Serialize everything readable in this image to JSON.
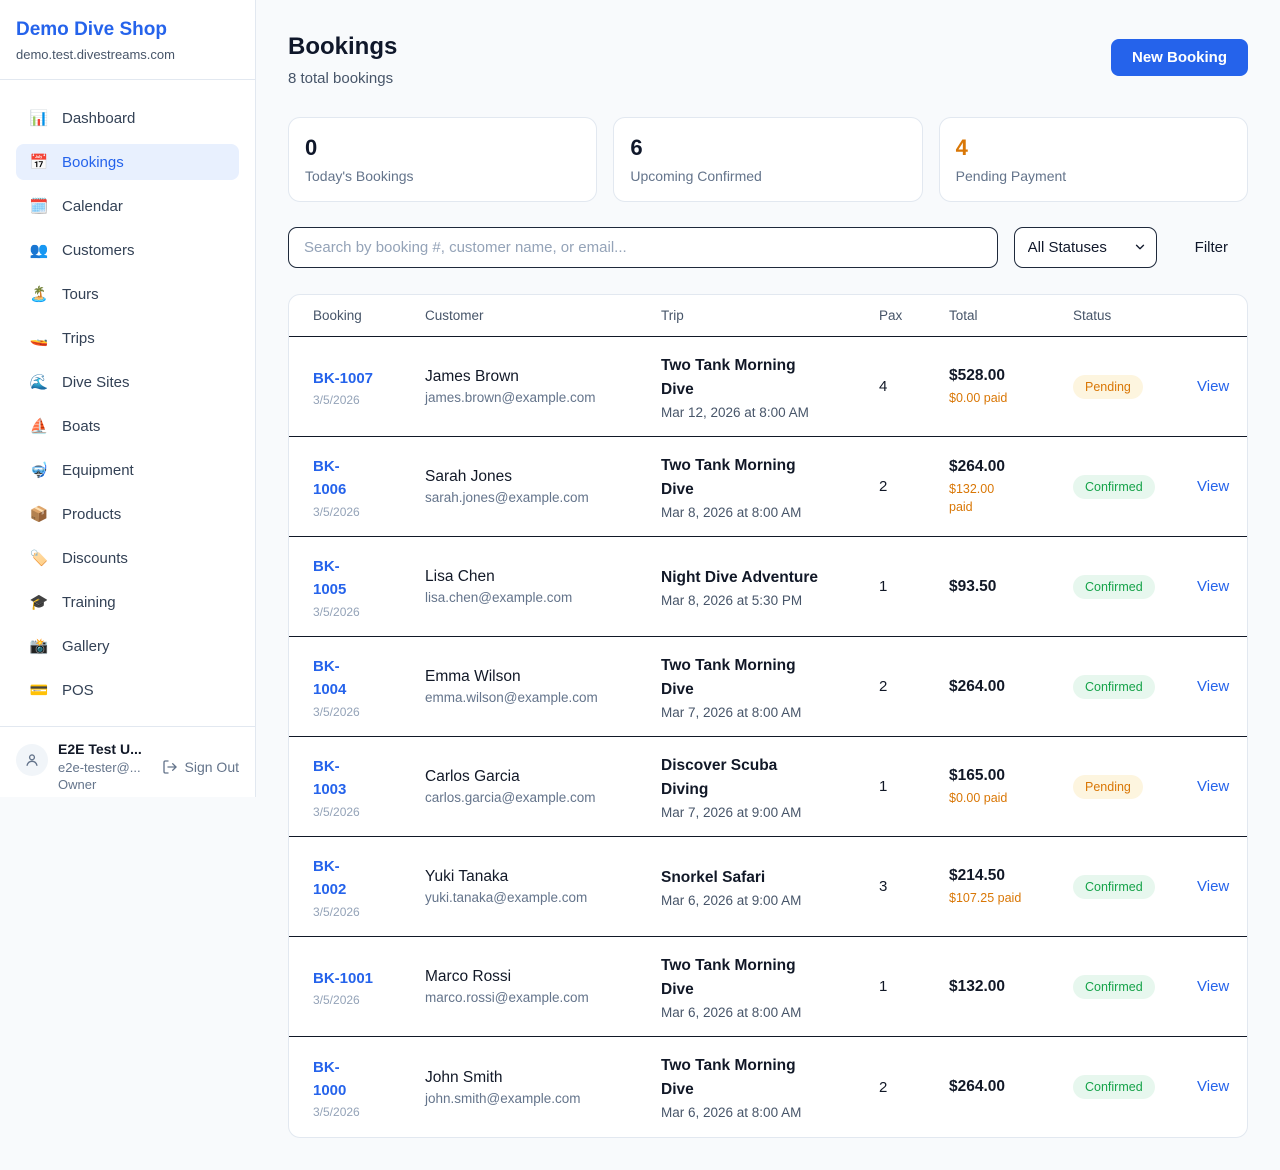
{
  "sidebar": {
    "shop_name": "Demo Dive Shop",
    "domain": "demo.test.divestreams.com",
    "items": [
      {
        "key": "dashboard",
        "icon": "bar-chart-icon",
        "emoji": "📊",
        "label": "Dashboard",
        "active": false
      },
      {
        "key": "bookings",
        "icon": "calendar-icon",
        "emoji": "📅",
        "label": "Bookings",
        "active": true
      },
      {
        "key": "calendar",
        "icon": "spiral-calendar-icon",
        "emoji": "🗓️",
        "label": "Calendar",
        "active": false
      },
      {
        "key": "customers",
        "icon": "users-icon",
        "emoji": "👥",
        "label": "Customers",
        "active": false
      },
      {
        "key": "tours",
        "icon": "island-icon",
        "emoji": "🏝️",
        "label": "Tours",
        "active": false
      },
      {
        "key": "trips",
        "icon": "speedboat-icon",
        "emoji": "🚤",
        "label": "Trips",
        "active": false
      },
      {
        "key": "dive-sites",
        "icon": "wave-icon",
        "emoji": "🌊",
        "label": "Dive Sites",
        "active": false
      },
      {
        "key": "boats",
        "icon": "sailboat-icon",
        "emoji": "⛵",
        "label": "Boats",
        "active": false
      },
      {
        "key": "equipment",
        "icon": "diving-mask-icon",
        "emoji": "🤿",
        "label": "Equipment",
        "active": false
      },
      {
        "key": "products",
        "icon": "package-icon",
        "emoji": "📦",
        "label": "Products",
        "active": false
      },
      {
        "key": "discounts",
        "icon": "label-tag-icon",
        "emoji": "🏷️",
        "label": "Discounts",
        "active": false
      },
      {
        "key": "training",
        "icon": "graduation-cap-icon",
        "emoji": "🎓",
        "label": "Training",
        "active": false
      },
      {
        "key": "gallery",
        "icon": "camera-icon",
        "emoji": "📸",
        "label": "Gallery",
        "active": false
      },
      {
        "key": "pos",
        "icon": "credit-card-icon",
        "emoji": "💳",
        "label": "POS",
        "active": false
      }
    ],
    "user": {
      "name": "E2E Test U...",
      "email": "e2e-tester@...",
      "role": "Owner",
      "sign_out_label": "Sign Out"
    }
  },
  "header": {
    "title": "Bookings",
    "subtitle": "8 total bookings",
    "new_booking_label": "New Booking"
  },
  "stats": [
    {
      "key": "todays-bookings",
      "value": "0",
      "label": "Today's Bookings",
      "accent": "dark"
    },
    {
      "key": "upcoming-confirmed",
      "value": "6",
      "label": "Upcoming Confirmed",
      "accent": "dark"
    },
    {
      "key": "pending-payment",
      "value": "4",
      "label": "Pending Payment",
      "accent": "orange"
    }
  ],
  "controls": {
    "search_placeholder": "Search by booking #, customer name, or email...",
    "status_filter_value": "All Statuses",
    "filter_label": "Filter"
  },
  "table": {
    "columns": [
      "Booking",
      "Customer",
      "Trip",
      "Pax",
      "Total",
      "Status"
    ],
    "rows": [
      {
        "id": "BK-1007",
        "date": "3/5/2026",
        "customer_name": "James Brown",
        "customer_email": "james.brown@example.com",
        "trip_name": "Two Tank Morning\nDive",
        "trip_datetime": "Mar 12, 2026 at 8:00 AM",
        "pax": "4",
        "total": "$528.00",
        "paid": "$0.00 paid",
        "status": "Pending",
        "action": "View"
      },
      {
        "id": "BK-\n1006",
        "date": "3/5/2026",
        "customer_name": "Sarah Jones",
        "customer_email": "sarah.jones@example.com",
        "trip_name": "Two Tank Morning\nDive",
        "trip_datetime": "Mar 8, 2026 at 8:00 AM",
        "pax": "2",
        "total": "$264.00",
        "paid": "$132.00\npaid",
        "status": "Confirmed",
        "action": "View"
      },
      {
        "id": "BK-\n1005",
        "date": "3/5/2026",
        "customer_name": "Lisa Chen",
        "customer_email": "lisa.chen@example.com",
        "trip_name": "Night Dive Adventure",
        "trip_datetime": "Mar 8, 2026 at 5:30 PM",
        "pax": "1",
        "total": "$93.50",
        "paid": "",
        "status": "Confirmed",
        "action": "View"
      },
      {
        "id": "BK-\n1004",
        "date": "3/5/2026",
        "customer_name": "Emma Wilson",
        "customer_email": "emma.wilson@example.com",
        "trip_name": "Two Tank Morning\nDive",
        "trip_datetime": "Mar 7, 2026 at 8:00 AM",
        "pax": "2",
        "total": "$264.00",
        "paid": "",
        "status": "Confirmed",
        "action": "View"
      },
      {
        "id": "BK-\n1003",
        "date": "3/5/2026",
        "customer_name": "Carlos Garcia",
        "customer_email": "carlos.garcia@example.com",
        "trip_name": "Discover Scuba\nDiving",
        "trip_datetime": "Mar 7, 2026 at 9:00 AM",
        "pax": "1",
        "total": "$165.00",
        "paid": "$0.00 paid",
        "status": "Pending",
        "action": "View"
      },
      {
        "id": "BK-\n1002",
        "date": "3/5/2026",
        "customer_name": "Yuki Tanaka",
        "customer_email": "yuki.tanaka@example.com",
        "trip_name": "Snorkel Safari",
        "trip_datetime": "Mar 6, 2026 at 9:00 AM",
        "pax": "3",
        "total": "$214.50",
        "paid": "$107.25 paid",
        "status": "Confirmed",
        "action": "View"
      },
      {
        "id": "BK-1001",
        "date": "3/5/2026",
        "customer_name": "Marco Rossi",
        "customer_email": "marco.rossi@example.com",
        "trip_name": "Two Tank Morning\nDive",
        "trip_datetime": "Mar 6, 2026 at 8:00 AM",
        "pax": "1",
        "total": "$132.00",
        "paid": "",
        "status": "Confirmed",
        "action": "View"
      },
      {
        "id": "BK-\n1000",
        "date": "3/5/2026",
        "customer_name": "John Smith",
        "customer_email": "john.smith@example.com",
        "trip_name": "Two Tank Morning\nDive",
        "trip_datetime": "Mar 6, 2026 at 8:00 AM",
        "pax": "2",
        "total": "$264.00",
        "paid": "",
        "status": "Confirmed",
        "action": "View"
      }
    ]
  },
  "colors": {
    "brand_blue": "#2563eb",
    "pending_orange": "#d97706",
    "confirmed_green": "#16a34a"
  }
}
